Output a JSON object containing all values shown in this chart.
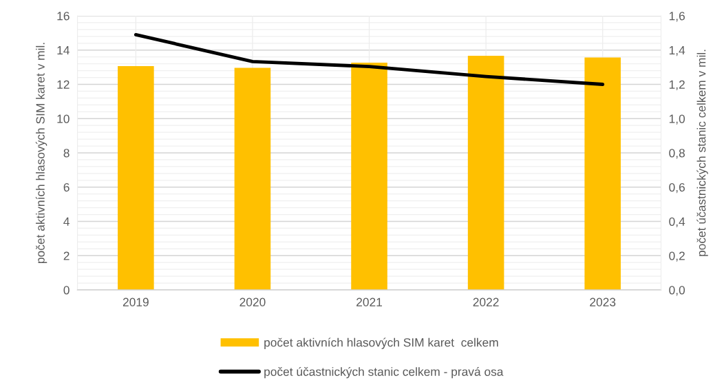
{
  "chart_data": {
    "type": "bar",
    "ylabel": "počet aktivních hlasových SIM karet v mil.",
    "y2label": "počet účastnických stanic celkem v mil.",
    "categories": [
      "2019",
      "2020",
      "2021",
      "2022",
      "2023"
    ],
    "series": [
      {
        "name": "počet aktivních hlasových SIM karet  celkem",
        "color": "#ffc000",
        "values": [
          13.07,
          12.96,
          13.27,
          13.67,
          13.57
        ]
      },
      {
        "name": "počet účastnických stanic celkem - pravá osa",
        "type": "line",
        "axis": "y2",
        "color": "#000000",
        "values": [
          1.49,
          1.333,
          1.304,
          1.246,
          1.2
        ]
      }
    ],
    "ylim": [
      0,
      16
    ],
    "yticks": [
      0,
      {
        "value": 0.4,
        "label": null
      },
      {
        "value": 0.8,
        "label": null
      },
      {
        "value": 1.2,
        "label": null
      },
      {
        "value": 1.6,
        "label": null
      },
      2,
      {
        "value": 2.4,
        "label": null
      },
      {
        "value": 2.8,
        "label": null
      },
      {
        "value": 3.2,
        "label": null
      },
      {
        "value": 3.6,
        "label": null
      },
      4,
      {
        "value": 4.4,
        "label": null
      },
      {
        "value": 4.8,
        "label": null
      },
      {
        "value": 5.2,
        "label": null
      },
      {
        "value": 5.6,
        "label": null
      },
      6,
      {
        "value": 6.4,
        "label": null
      },
      {
        "value": 6.8,
        "label": null
      },
      {
        "value": 7.2,
        "label": null
      },
      {
        "value": 7.6,
        "label": null
      },
      8,
      {
        "value": 8.4,
        "label": null
      },
      {
        "value": 8.8,
        "label": null
      },
      {
        "value": 9.2,
        "label": null
      },
      {
        "value": 9.6,
        "label": null
      },
      10,
      {
        "value": 10.4,
        "label": null
      },
      {
        "value": 10.8,
        "label": null
      },
      {
        "value": 11.2,
        "label": null
      },
      {
        "value": 11.6,
        "label": null
      },
      12,
      {
        "value": 12.4,
        "label": null
      },
      {
        "value": 12.8,
        "label": null
      },
      {
        "value": 13.2,
        "label": null
      },
      {
        "value": 13.6,
        "label": null
      },
      14,
      {
        "value": 14.4,
        "label": null
      },
      {
        "value": 14.8,
        "label": null
      },
      {
        "value": 15.2,
        "label": null
      },
      {
        "value": 15.6,
        "label": null
      },
      16
    ],
    "y2lim": [
      0,
      1.6
    ],
    "y2ticks": [
      {
        "value": 0,
        "label": "0,0"
      },
      {
        "value": 0.2,
        "label": "0,2"
      },
      {
        "value": 0.4,
        "label": "0,4"
      },
      {
        "value": 0.6,
        "label": "0,6"
      },
      {
        "value": 0.8,
        "label": "0,8"
      },
      {
        "value": 1.0,
        "label": "1,0"
      },
      {
        "value": 1.2,
        "label": "1,2"
      },
      {
        "value": 1.4,
        "label": "1,4"
      },
      {
        "value": 1.6,
        "label": "1,6"
      }
    ],
    "grid": true,
    "legend": "bottom",
    "marker": "none",
    "line_style": "solid"
  }
}
